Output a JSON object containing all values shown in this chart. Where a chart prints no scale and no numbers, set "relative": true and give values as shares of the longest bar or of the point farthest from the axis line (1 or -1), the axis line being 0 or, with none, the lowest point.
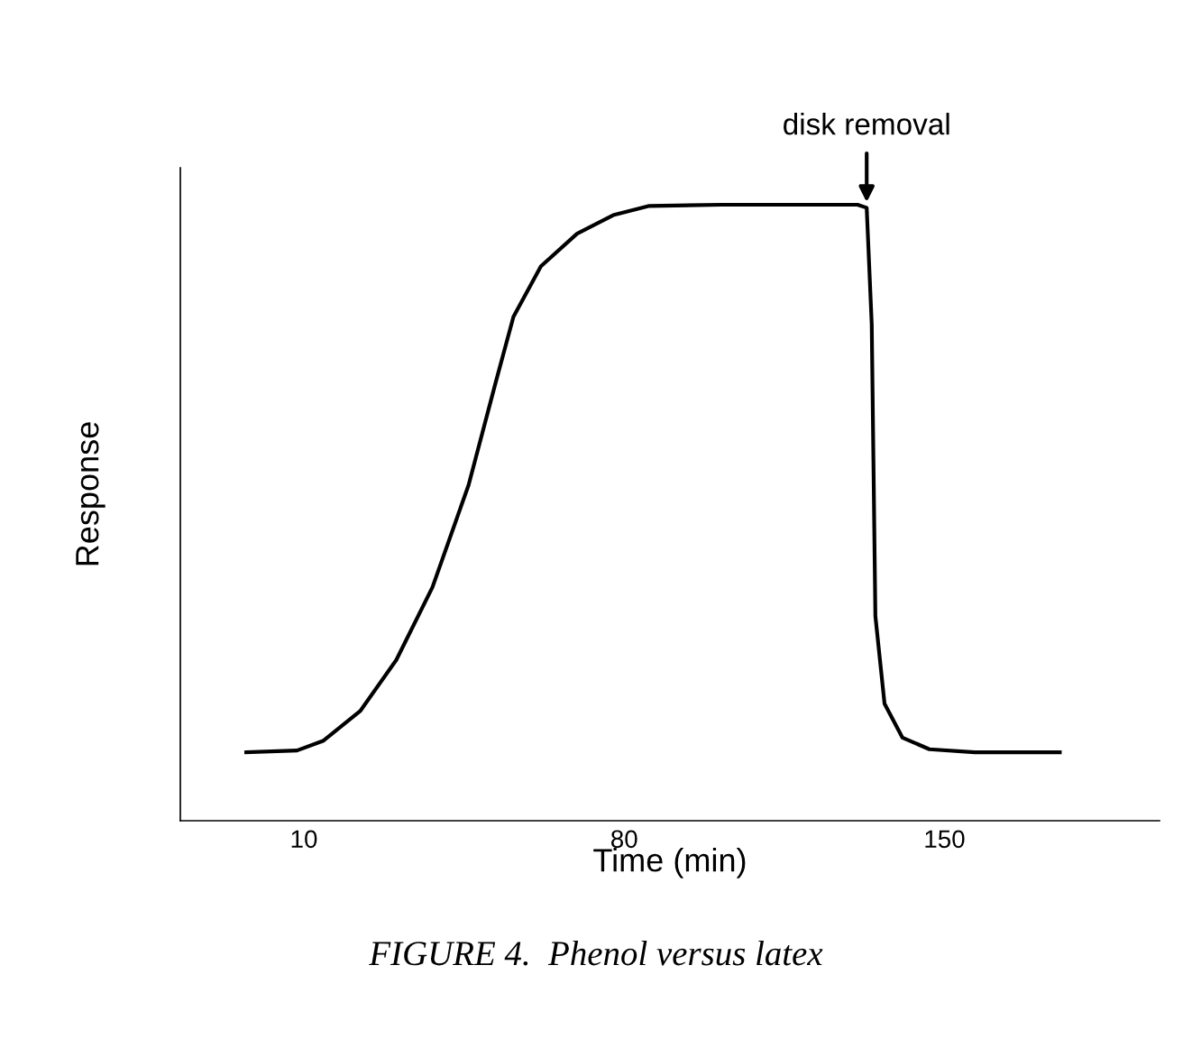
{
  "chart_data": {
    "type": "line",
    "xlabel": "Time (min)",
    "ylabel": "Response",
    "relative": true,
    "xlim": [
      -17,
      197
    ],
    "xticks": [
      10,
      80,
      150
    ],
    "grid": false,
    "legend": false,
    "marker": "none",
    "line_style": "solid",
    "series": [
      {
        "color": "#000000",
        "x": [
          -2.6,
          8.5,
          14.3,
          22.3,
          30.2,
          38.1,
          46,
          51.9,
          55.8,
          61.8,
          69.7,
          77.6,
          85.5,
          101.3,
          131,
          133,
          134.1,
          134.9,
          136.9,
          140.8,
          146.7,
          156.6,
          175.2
        ],
        "values": [
          0.111,
          0.114,
          0.13,
          0.178,
          0.261,
          0.379,
          0.545,
          0.711,
          0.818,
          0.9,
          0.953,
          0.983,
          0.998,
          1,
          1,
          0.995,
          0.806,
          0.332,
          0.19,
          0.135,
          0.116,
          0.111,
          0.111
        ]
      }
    ],
    "annotations": [
      {
        "text": "disk removal",
        "x": 133,
        "y": 1
      },
      "FIGURE 4.  Phenol versus latex"
    ]
  }
}
